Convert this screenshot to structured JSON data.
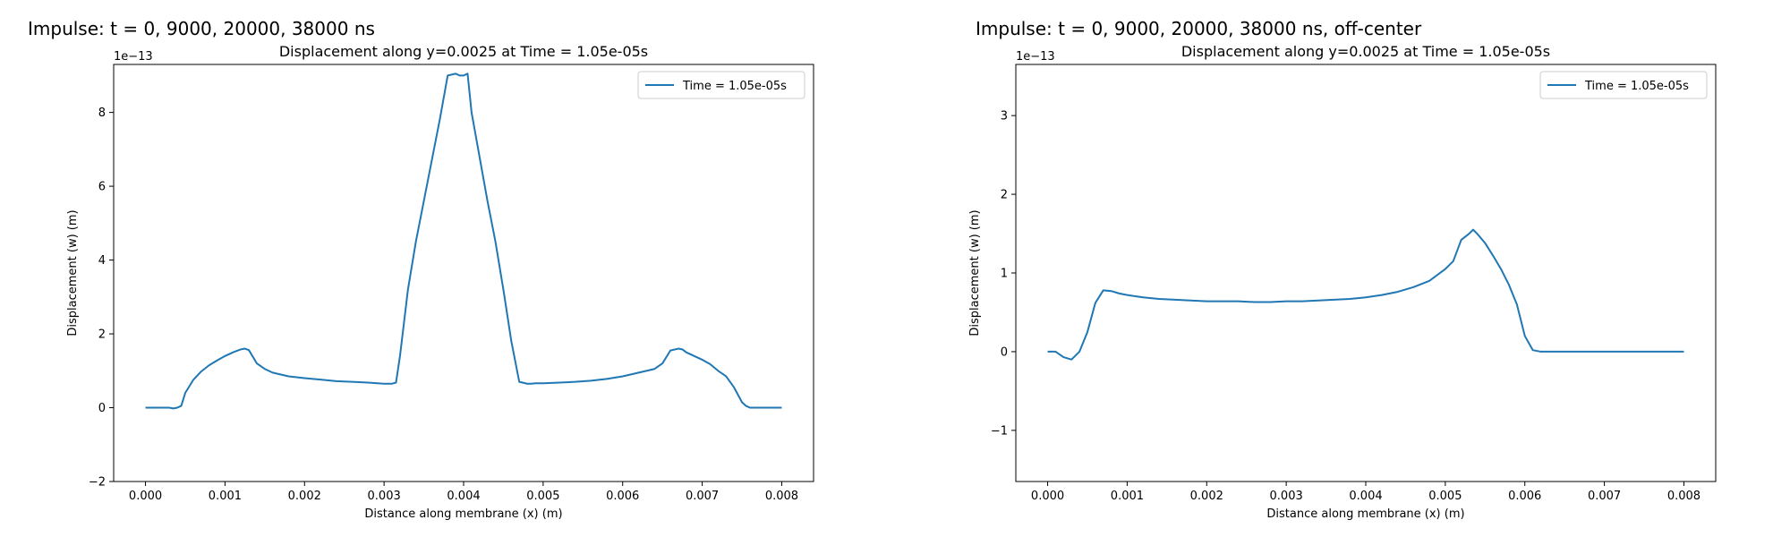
{
  "figure": {
    "left_title": "Impulse: t = 0, 9000, 20000, 38000 ns",
    "right_title": "Impulse: t = 0, 9000, 20000, 38000 ns, off-center"
  },
  "chart_data": [
    {
      "type": "line",
      "title": "Displacement along y=0.0025 at Time = 1.05e-05s",
      "xlabel": "Distance along membrane (x) (m)",
      "ylabel": "Displacement (w) (m)",
      "y_scale_label": "1e−13",
      "xlim": [
        -0.0004,
        0.0084
      ],
      "ylim": [
        -2,
        9.3
      ],
      "xticks": [
        0.0,
        0.001,
        0.002,
        0.003,
        0.004,
        0.005,
        0.006,
        0.007,
        0.008
      ],
      "xtick_labels": [
        "0.000",
        "0.001",
        "0.002",
        "0.003",
        "0.004",
        "0.005",
        "0.006",
        "0.007",
        "0.008"
      ],
      "yticks": [
        -2,
        0,
        2,
        4,
        6,
        8
      ],
      "ytick_labels": [
        "−2",
        "0",
        "2",
        "4",
        "6",
        "8"
      ],
      "grid": false,
      "legend_position": "upper right",
      "color": "#1f77b4",
      "series": [
        {
          "name": "Time = 1.05e-05s",
          "x": [
            0.0,
            0.0001,
            0.0002,
            0.0003,
            0.00035,
            0.0004,
            0.00045,
            0.0005,
            0.0006,
            0.0007,
            0.0008,
            0.0009,
            0.001,
            0.0011,
            0.0012,
            0.00125,
            0.0013,
            0.0014,
            0.0015,
            0.0016,
            0.0018,
            0.002,
            0.0022,
            0.0024,
            0.0026,
            0.0028,
            0.003,
            0.0031,
            0.00315,
            0.0032,
            0.0033,
            0.0034,
            0.0035,
            0.0036,
            0.0037,
            0.0038,
            0.0039,
            0.00395,
            0.004,
            0.00405,
            0.0041,
            0.0042,
            0.0043,
            0.0044,
            0.0045,
            0.0046,
            0.0047,
            0.0048,
            0.00485,
            0.0049,
            0.005,
            0.0052,
            0.0054,
            0.0056,
            0.0058,
            0.006,
            0.0062,
            0.0064,
            0.0065,
            0.0066,
            0.0067,
            0.00675,
            0.0068,
            0.0069,
            0.007,
            0.0071,
            0.0072,
            0.0073,
            0.0074,
            0.0075,
            0.00755,
            0.0076,
            0.0077,
            0.0078,
            0.0079,
            0.008
          ],
          "y": [
            0,
            0,
            0,
            0,
            -0.02,
            0,
            0.05,
            0.4,
            0.75,
            0.98,
            1.15,
            1.28,
            1.4,
            1.5,
            1.58,
            1.6,
            1.56,
            1.2,
            1.05,
            0.95,
            0.85,
            0.8,
            0.76,
            0.72,
            0.7,
            0.68,
            0.65,
            0.65,
            0.68,
            1.4,
            3.2,
            4.5,
            5.6,
            6.7,
            7.8,
            9.0,
            9.05,
            9.0,
            9.0,
            9.05,
            8.0,
            6.8,
            5.6,
            4.5,
            3.2,
            1.8,
            0.7,
            0.65,
            0.65,
            0.66,
            0.66,
            0.68,
            0.7,
            0.73,
            0.78,
            0.85,
            0.95,
            1.05,
            1.2,
            1.55,
            1.6,
            1.58,
            1.5,
            1.4,
            1.3,
            1.18,
            1.0,
            0.85,
            0.55,
            0.15,
            0.05,
            0,
            0,
            0,
            0,
            0
          ]
        }
      ]
    },
    {
      "type": "line",
      "title": "Displacement along y=0.0025 at Time = 1.05e-05s",
      "xlabel": "Distance along membrane (x) (m)",
      "ylabel": "Displacement (w) (m)",
      "y_scale_label": "1e−13",
      "xlim": [
        -0.0004,
        0.0084
      ],
      "ylim": [
        -1.65,
        3.65
      ],
      "xticks": [
        0.0,
        0.001,
        0.002,
        0.003,
        0.004,
        0.005,
        0.006,
        0.007,
        0.008
      ],
      "xtick_labels": [
        "0.000",
        "0.001",
        "0.002",
        "0.003",
        "0.004",
        "0.005",
        "0.006",
        "0.007",
        "0.008"
      ],
      "yticks": [
        -1,
        0,
        1,
        2,
        3
      ],
      "ytick_labels": [
        "−1",
        "0",
        "1",
        "2",
        "3"
      ],
      "grid": false,
      "legend_position": "upper right",
      "color": "#1f77b4",
      "series": [
        {
          "name": "Time = 1.05e-05s",
          "x": [
            0.0,
            0.0001,
            0.0002,
            0.0003,
            0.0004,
            0.0005,
            0.0006,
            0.0007,
            0.0008,
            0.0009,
            0.001,
            0.0012,
            0.0014,
            0.0016,
            0.0018,
            0.002,
            0.0022,
            0.0024,
            0.0026,
            0.0028,
            0.003,
            0.0032,
            0.0034,
            0.0036,
            0.0038,
            0.004,
            0.0042,
            0.0044,
            0.0046,
            0.0048,
            0.005,
            0.0051,
            0.0052,
            0.0053,
            0.00535,
            0.0054,
            0.0055,
            0.0056,
            0.0057,
            0.0058,
            0.0059,
            0.006,
            0.0061,
            0.0062,
            0.0063,
            0.0065,
            0.007,
            0.0075,
            0.008
          ],
          "y": [
            0,
            0,
            -0.07,
            -0.1,
            0,
            0.25,
            0.62,
            0.78,
            0.77,
            0.74,
            0.72,
            0.69,
            0.67,
            0.66,
            0.65,
            0.64,
            0.64,
            0.64,
            0.63,
            0.63,
            0.64,
            0.64,
            0.65,
            0.66,
            0.67,
            0.69,
            0.72,
            0.76,
            0.82,
            0.9,
            1.05,
            1.15,
            1.42,
            1.5,
            1.55,
            1.5,
            1.38,
            1.22,
            1.05,
            0.85,
            0.6,
            0.2,
            0.02,
            0,
            0,
            0,
            0,
            0,
            0
          ]
        }
      ]
    }
  ]
}
